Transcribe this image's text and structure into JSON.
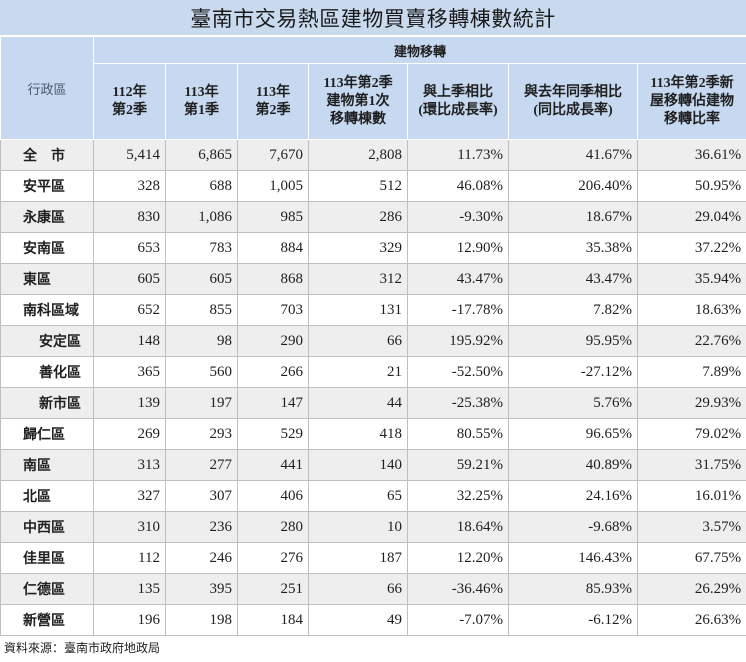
{
  "colors": {
    "title_background": "#c9daee",
    "header_background": "#c6d9f0",
    "grid_line": "#bfbfbf",
    "row_stripe": "#eeeeee"
  },
  "chart_data": {
    "type": "table",
    "title": "臺南市交易熱區建物買賣移轉棟數統計",
    "row_header_label": "行政區",
    "column_group_label": "建物移轉",
    "columns": [
      "112年\n第2季",
      "113年\n第1季",
      "113年\n第2季",
      "113年第2季\n建物第1次\n移轉棟數",
      "與上季相比\n(環比成長率)",
      "與去年同季相比\n(同比成長率)",
      "113年第2季新\n屋移轉佔建物\n移轉比率"
    ],
    "rows": [
      {
        "name": "全　市",
        "values": [
          "5,414",
          "6,865",
          "7,670",
          "2,808",
          "11.73%",
          "41.67%",
          "36.61%"
        ]
      },
      {
        "name": "安平區",
        "values": [
          "328",
          "688",
          "1,005",
          "512",
          "46.08%",
          "206.40%",
          "50.95%"
        ]
      },
      {
        "name": "永康區",
        "values": [
          "830",
          "1,086",
          "985",
          "286",
          "-9.30%",
          "18.67%",
          "29.04%"
        ]
      },
      {
        "name": "安南區",
        "values": [
          "653",
          "783",
          "884",
          "329",
          "12.90%",
          "35.38%",
          "37.22%"
        ]
      },
      {
        "name": "東區",
        "values": [
          "605",
          "605",
          "868",
          "312",
          "43.47%",
          "43.47%",
          "35.94%"
        ]
      },
      {
        "name": "南科區域",
        "values": [
          "652",
          "855",
          "703",
          "131",
          "-17.78%",
          "7.82%",
          "18.63%"
        ]
      },
      {
        "name": "安定區",
        "values": [
          "148",
          "98",
          "290",
          "66",
          "195.92%",
          "95.95%",
          "22.76%"
        ]
      },
      {
        "name": "善化區",
        "values": [
          "365",
          "560",
          "266",
          "21",
          "-52.50%",
          "-27.12%",
          "7.89%"
        ]
      },
      {
        "name": "新市區",
        "values": [
          "139",
          "197",
          "147",
          "44",
          "-25.38%",
          "5.76%",
          "29.93%"
        ]
      },
      {
        "name": "歸仁區",
        "values": [
          "269",
          "293",
          "529",
          "418",
          "80.55%",
          "96.65%",
          "79.02%"
        ]
      },
      {
        "name": "南區",
        "values": [
          "313",
          "277",
          "441",
          "140",
          "59.21%",
          "40.89%",
          "31.75%"
        ]
      },
      {
        "name": "北區",
        "values": [
          "327",
          "307",
          "406",
          "65",
          "32.25%",
          "24.16%",
          "16.01%"
        ]
      },
      {
        "name": "中西區",
        "values": [
          "310",
          "236",
          "280",
          "10",
          "18.64%",
          "-9.68%",
          "3.57%"
        ]
      },
      {
        "name": "佳里區",
        "values": [
          "112",
          "246",
          "276",
          "187",
          "12.20%",
          "146.43%",
          "67.75%"
        ]
      },
      {
        "name": "仁德區",
        "values": [
          "135",
          "395",
          "251",
          "66",
          "-36.46%",
          "85.93%",
          "26.29%"
        ]
      },
      {
        "name": "新營區",
        "values": [
          "196",
          "198",
          "184",
          "49",
          "-7.07%",
          "-6.12%",
          "26.63%"
        ]
      }
    ],
    "source": "資料來源：臺南市政府地政局"
  }
}
